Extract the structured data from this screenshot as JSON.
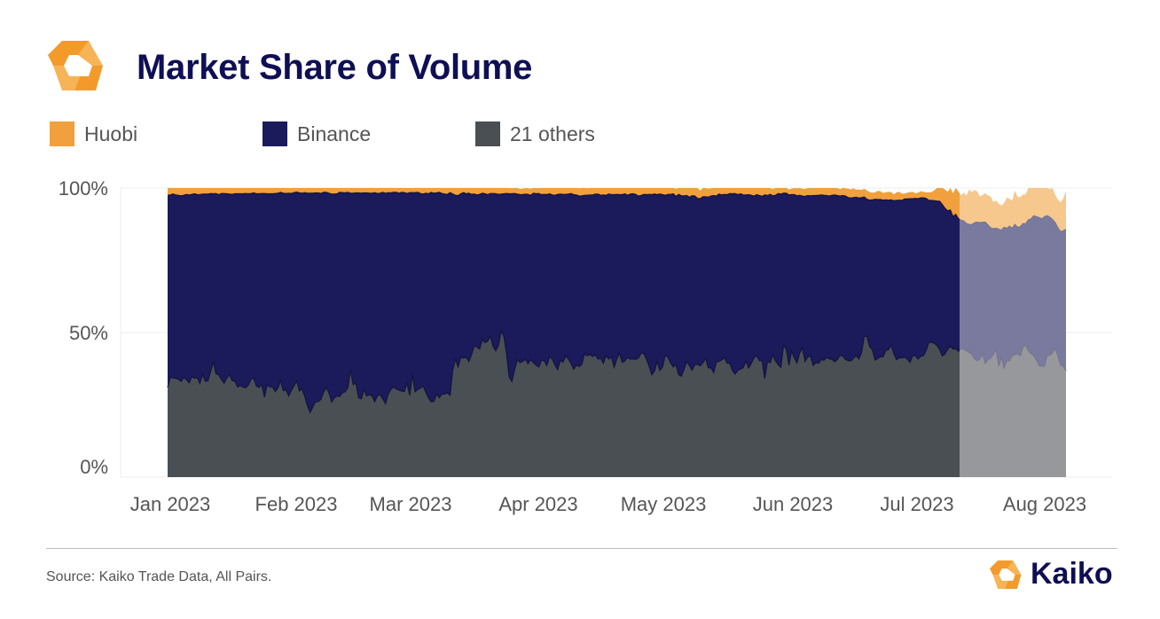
{
  "title": "Market Share of Volume",
  "brand": "Kaiko",
  "source": "Source: Kaiko Trade Data, All Pairs.",
  "colors": {
    "huobi": "#f0a03c",
    "binance": "#1b1a5a",
    "others": "#4a4f53",
    "logo_orange": "#f39a2a",
    "logo_light": "#f6b457",
    "grid": "#eeeeee",
    "axis_text": "#555555"
  },
  "chart_data": {
    "type": "area",
    "stacked": true,
    "percent": true,
    "title": "Market Share of Volume",
    "ylim": [
      0,
      100
    ],
    "y_ticks": [
      {
        "value": 0,
        "label": "0%"
      },
      {
        "value": 50,
        "label": "50%"
      },
      {
        "value": 100,
        "label": "100%"
      }
    ],
    "x_ticks": [
      {
        "day": 0,
        "label": "Jan 2023"
      },
      {
        "day": 31,
        "label": "Feb 2023"
      },
      {
        "day": 59,
        "label": "Mar 2023"
      },
      {
        "day": 90,
        "label": "Apr 2023"
      },
      {
        "day": 120,
        "label": "May 2023"
      },
      {
        "day": 151,
        "label": "Jun 2023"
      },
      {
        "day": 181,
        "label": "Jul 2023"
      },
      {
        "day": 212,
        "label": "Aug 2023"
      }
    ],
    "x_range_days": [
      -11,
      228
    ],
    "highlight_from_day": 189,
    "series": [
      {
        "name": "21 others",
        "key": "others",
        "color": "#4a4f53",
        "values": [
          31.0,
          34.5,
          34.3,
          34.2,
          33.9,
          33.1,
          34.5,
          33.7,
          32.6,
          34.7,
          34.2,
          34.5,
          32.4,
          35.5,
          33.2,
          33.3,
          36.5,
          39.8,
          35.7,
          35.5,
          33.7,
          32.5,
          34.2,
          35.4,
          33.4,
          33.2,
          31.2,
          31.6,
          31.2,
          30.9,
          31.8,
          33.8,
          34.2,
          31.5,
          31.0,
          32.0,
          27.7,
          31.9,
          31.2,
          31.2,
          29.6,
          30.8,
          33.4,
          29.9,
          30.2,
          28.1,
          30.0,
          31.6,
          33.3,
          29.8,
          30.5,
          27.9,
          24.7,
          22.4,
          24.3,
          26.1,
          26.1,
          26.9,
          29.4,
          31.0,
          29.1,
          26.0,
          27.4,
          28.1,
          27.9,
          29.2,
          29.5,
          30.9,
          37.1,
          32.0,
          32.7,
          27.5,
          27.1,
          30.2,
          28.1,
          28.5,
          28.1,
          26.1,
          28.2,
          28.5,
          27.1,
          25.4,
          28.7,
          30.3,
          31.2,
          30.5,
          30.1,
          29.8,
          29.6,
          32.6,
          28.3,
          35.4,
          29.5,
          30.4,
          30.8,
          31.5,
          29.3,
          27.4,
          26.0,
          26.2,
          28.7,
          27.5,
          28.7,
          28.7,
          29.2,
          28.3,
          37.1,
          40.7,
          38.1,
          41.5,
          41.2,
          41.5,
          40.0,
          42.4,
          45.4,
          45.0,
          44.3,
          47.6,
          46.5,
          47.0,
          48.7,
          45.2,
          43.7,
          45.5,
          50.5,
          48.7,
          42.9,
          34.5,
          33.1,
          37.1,
          40.6,
          39.6,
          40.0,
          40.8,
          39.2,
          40.6,
          39.6,
          38.7,
          38.1,
          40.4,
          40.3,
          38.6,
          41.7,
          40.8,
          38.8,
          37.2,
          40.4,
          39.7,
          41.9,
          40.9,
          39.3,
          37.3,
          38.8,
          38.2,
          39.0,
          42.8,
          41.9,
          42.5,
          41.7,
          42.3,
          40.8,
          41.2,
          39.4,
          42.1,
          40.8,
          41.6,
          38.0,
          40.9,
          43.0,
          39.7,
          40.2,
          41.4,
          40.8,
          40.9,
          40.7,
          41.2,
          42.8,
          42.9,
          40.7,
          38.4,
          35.4,
          36.6,
          40.1,
          36.9,
          38.1,
          42.2,
          41.5,
          39.5,
          38.1,
          38.9,
          35.4,
          34.9,
          37.3,
          40.0,
          38.6,
          37.0,
          38.9,
          39.0,
          38.5,
          39.5,
          41.2,
          37.8,
          37.8,
          36.2,
          39.7,
          40.1,
          40.5,
          41.3,
          39.4,
          39.4,
          36.8,
          35.6,
          36.9,
          37.4,
          37.8,
          40.2,
          37.7,
          39.3,
          41.3,
          42.0,
          40.3,
          40.3,
          34.1,
          40.0,
          39.5,
          42.3,
          40.2,
          38.9,
          38.0,
          45.6,
          44.2,
          38.7,
          43.7,
          41.2,
          39.5,
          42.9,
          44.7,
          40.0,
          41.6,
          41.8,
          38.6,
          39.6,
          39.4,
          40.7,
          40.4,
          41.4,
          40.9,
          40.8,
          39.9,
          40.7,
          42.1,
          41.9,
          40.7,
          40.3,
          40.2,
          41.1,
          42.0,
          40.9,
          43.1,
          48.7,
          48.6,
          45.1,
          44.1,
          40.5,
          41.0,
          41.6,
          41.6,
          43.8,
          44.1,
          45.6,
          42.7,
          40.6,
          41.3,
          41.2,
          41.5,
          40.8,
          39.7,
          42.0,
          42.0,
          40.8,
          41.8,
          42.0,
          43.8,
          46.6,
          46.6,
          46.3,
          45.6,
          44.1,
          41.9,
          42.6,
          44.2,
          45.2,
          44.3,
          44.4,
          43.5,
          44.5,
          44.3,
          43.7,
          43.1,
          42.5,
          40.8,
          40.2,
          40.8,
          42.7,
          39.3,
          40.7,
          41.1,
          42.5,
          44.3,
          38.4,
          41.5,
          37.8,
          40.4,
          40.2,
          42.0,
          42.4,
          42.7,
          42.0,
          44.9,
          45.7,
          43.8,
          42.7,
          42.1,
          40.5,
          38.6,
          38.3,
          38.4,
          42.2,
          42.1,
          43.0,
          44.5,
          42.0,
          38.8,
          38.3,
          36.8
        ]
      },
      {
        "name": "Binance",
        "key": "binance",
        "color": "#1b1a5a",
        "values": [
          66.5,
          63.1,
          63.6,
          63.4,
          63.6,
          64.2,
          63.0,
          64.1,
          65.0,
          63.1,
          63.8,
          63.2,
          65.3,
          62.4,
          64.7,
          64.6,
          61.6,
          58.2,
          62.4,
          62.2,
          64.4,
          65.6,
          63.8,
          62.5,
          64.4,
          64.8,
          66.8,
          66.4,
          66.8,
          67.2,
          66.2,
          64.3,
          64.1,
          66.5,
          67.0,
          66.1,
          70.4,
          66.1,
          66.8,
          66.8,
          68.5,
          67.4,
          65.1,
          68.3,
          67.9,
          70.1,
          68.1,
          66.8,
          65.3,
          68.5,
          67.7,
          70.5,
          73.5,
          75.8,
          73.9,
          72.2,
          72.2,
          71.2,
          69.1,
          67.5,
          69.1,
          71.9,
          70.5,
          69.9,
          70.6,
          69.2,
          68.8,
          67.6,
          61.1,
          66.2,
          65.6,
          70.8,
          71.1,
          68.1,
          70.2,
          69.7,
          70.1,
          72.3,
          69.9,
          69.7,
          71.4,
          72.8,
          69.7,
          68.0,
          67.3,
          68.0,
          68.1,
          68.7,
          68.8,
          65.5,
          70.1,
          63.0,
          68.9,
          68.1,
          67.3,
          66.4,
          68.9,
          70.6,
          72.5,
          72.0,
          69.6,
          71.0,
          69.4,
          69.2,
          68.6,
          70.1,
          60.8,
          56.8,
          59.3,
          56.5,
          57.2,
          56.5,
          58.2,
          55.4,
          52.5,
          52.6,
          53.5,
          50.6,
          51.5,
          50.7,
          49.4,
          52.9,
          54.3,
          52.3,
          47.4,
          49.3,
          55.2,
          63.5,
          64.9,
          61.0,
          57.3,
          58.1,
          57.7,
          57.1,
          58.6,
          56.9,
          58.6,
          59.3,
          60.0,
          57.3,
          57.5,
          59.1,
          56.3,
          56.8,
          58.7,
          60.6,
          57.5,
          58.1,
          55.9,
          57.0,
          58.8,
          60.4,
          58.8,
          59.0,
          58.3,
          54.7,
          55.6,
          55.1,
          55.9,
          55.6,
          57.1,
          56.3,
          58.2,
          55.4,
          57.1,
          56.1,
          59.7,
          56.9,
          54.7,
          58.0,
          57.8,
          56.1,
          57.1,
          57.1,
          57.1,
          56.0,
          54.6,
          54.9,
          57.0,
          59.4,
          62.3,
          61.3,
          57.6,
          61.0,
          59.6,
          55.3,
          56.3,
          58.3,
          59.9,
          58.2,
          62.4,
          62.4,
          60.0,
          57.4,
          58.2,
          60.3,
          58.3,
          57.4,
          57.8,
          57.5,
          55.8,
          59.0,
          59.4,
          61.2,
          57.5,
          57.8,
          57.1,
          56.5,
          58.3,
          58.7,
          61.2,
          62.5,
          60.8,
          60.6,
          59.8,
          57.4,
          60.0,
          58.2,
          55.9,
          55.7,
          57.1,
          56.8,
          63.5,
          57.4,
          58.3,
          55.0,
          57.3,
          59.2,
          59.9,
          52.6,
          54.0,
          58.9,
          54.0,
          56.5,
          57.8,
          54.6,
          52.5,
          57.1,
          55.8,
          55.5,
          58.8,
          57.8,
          58.1,
          56.9,
          57.1,
          56.0,
          56.3,
          56.7,
          57.7,
          56.7,
          55.1,
          55.5,
          56.5,
          56.4,
          56.3,
          55.6,
          54.8,
          55.6,
          53.6,
          48.2,
          47.5,
          50.7,
          51.8,
          55.6,
          55.0,
          54.4,
          54.2,
          52.1,
          51.7,
          50.3,
          52.9,
          55.1,
          54.5,
          54.5,
          54.7,
          55.4,
          56.6,
          54.3,
          54.4,
          55.5,
          54.8,
          54.6,
          52.6,
          49.1,
          49.1,
          49.3,
          49.9,
          51.3,
          52.4,
          50.4,
          47.9,
          47.2,
          45.8,
          46.5,
          45.9,
          44.4,
          44.3,
          44.0,
          44.3,
          44.8,
          47.2,
          48.0,
          47.2,
          45.5,
          48.9,
          46.5,
          45.1,
          43.4,
          41.8,
          47.3,
          43.9,
          48.6,
          45.6,
          46.6,
          44.0,
          45.0,
          43.7,
          44.6,
          42.8,
          41.9,
          45.2,
          46.6,
          48.3,
          49.6,
          51.2,
          51.0,
          51.7,
          48.2,
          47.8,
          46.1,
          43.5,
          44.2,
          46.1,
          46.9,
          48.9
        ]
      },
      {
        "name": "Huobi",
        "key": "huobi",
        "color": "#f0a03c",
        "values": [
          2.5,
          2.4,
          2.1,
          2.4,
          2.5,
          2.7,
          2.5,
          2.2,
          2.4,
          2.2,
          2.0,
          2.3,
          2.3,
          2.1,
          2.1,
          2.1,
          1.9,
          2.0,
          1.9,
          2.3,
          1.9,
          1.9,
          2.0,
          2.1,
          2.2,
          2.0,
          2.0,
          2.0,
          2.0,
          1.9,
          2.0,
          1.9,
          1.7,
          2.0,
          2.0,
          1.9,
          1.9,
          2.0,
          2.0,
          2.0,
          1.9,
          1.8,
          1.5,
          1.8,
          1.9,
          1.8,
          1.9,
          1.6,
          1.4,
          1.7,
          1.8,
          1.6,
          1.8,
          1.8,
          1.8,
          1.7,
          1.7,
          1.9,
          1.5,
          1.5,
          1.8,
          2.1,
          2.1,
          2.0,
          1.5,
          1.6,
          1.7,
          1.5,
          1.8,
          1.8,
          1.7,
          1.7,
          1.8,
          1.7,
          1.7,
          1.8,
          1.8,
          1.6,
          1.9,
          1.8,
          1.5,
          1.8,
          1.6,
          1.7,
          1.5,
          1.5,
          1.8,
          1.5,
          1.6,
          1.9,
          1.6,
          1.6,
          1.6,
          1.5,
          1.9,
          2.1,
          1.8,
          2.0,
          1.5,
          1.8,
          1.7,
          1.5,
          1.9,
          2.1,
          2.2,
          1.6,
          2.1,
          2.5,
          2.6,
          2.0,
          1.6,
          2.0,
          1.8,
          2.2,
          2.1,
          2.4,
          2.2,
          1.8,
          2.0,
          2.3,
          1.9,
          1.9,
          2.0,
          2.2,
          2.1,
          2.0,
          1.9,
          2.0,
          1.9,
          2.4,
          2.4,
          2.0,
          2.1,
          2.3,
          2.1,
          2.3,
          2.2,
          2.5,
          1.8,
          2.5,
          2.7,
          3.2,
          2.5,
          2.5,
          3.7,
          2.7,
          2.9,
          2.8,
          2.5,
          2.5,
          2.6,
          2.6,
          2.7,
          2.7,
          2.9,
          2.7,
          2.4,
          2.9,
          3.0,
          2.6,
          3.1,
          2.8,
          2.9,
          3.3,
          2.9,
          3.3,
          2.7,
          3.0,
          3.1,
          2.8,
          3.1,
          3.4,
          3.4,
          2.9,
          3.7,
          3.4,
          2.9,
          3.1,
          3.4,
          2.8,
          3.5,
          3.7,
          3.2,
          3.4,
          3.4,
          3.5,
          2.8,
          3.2,
          3.5,
          2.7,
          4.3,
          3.8,
          3.9,
          4.2,
          4.1,
          3.9,
          3.6,
          4.1,
          2.8,
          3.7,
          3.4,
          3.0,
          2.7,
          3.0,
          3.1,
          3.2,
          3.1,
          2.7,
          4.1,
          2.7,
          2.9,
          3.2,
          3.0,
          2.8,
          3.5,
          4.0,
          2.5,
          3.4,
          2.9,
          3.5,
          3.2,
          3.3,
          2.8,
          2.7,
          2.9,
          2.4,
          2.5,
          2.3,
          2.2,
          3.3,
          3.2,
          1.9,
          2.1,
          2.8,
          2.6,
          2.8,
          2.6,
          2.6,
          2.9,
          2.8,
          2.7,
          2.7,
          2.8,
          2.6,
          2.5,
          3.1,
          2.9,
          2.5,
          2.4,
          2.6,
          2.4,
          2.8,
          2.7,
          3.1,
          3.0,
          3.2,
          2.6,
          3.0,
          2.6,
          2.9,
          3.0,
          2.8,
          2.5,
          2.4,
          3.0,
          2.9,
          2.5,
          2.6,
          2.9,
          2.7,
          2.2,
          2.8,
          2.9,
          2.4,
          1.9,
          2.2,
          2.3,
          2.4,
          1.8,
          2.1,
          2.3,
          2.1,
          2.1,
          2.8,
          2.9,
          3.6,
          4.9,
          6.5,
          6.8,
          6.5,
          6.6,
          7.7,
          8.1,
          10.1,
          9.4,
          8.6,
          9.8,
          9.7,
          12.1,
          11.3,
          11.3,
          10.6,
          9.1,
          9.4,
          10.0,
          10.2,
          10.9,
          9.2,
          9.6,
          8.8,
          8.6,
          8.4,
          10.7,
          9.5,
          9.6,
          11.7,
          10.5,
          10.3,
          10.1,
          10.2,
          11.4,
          11.1,
          10.7,
          11.7,
          11.7,
          11.8,
          10.9,
          10.3,
          9.8,
          10.9,
          9.6,
          9.8,
          10.1,
          11.2,
          13.3,
          14.3
        ]
      }
    ]
  }
}
